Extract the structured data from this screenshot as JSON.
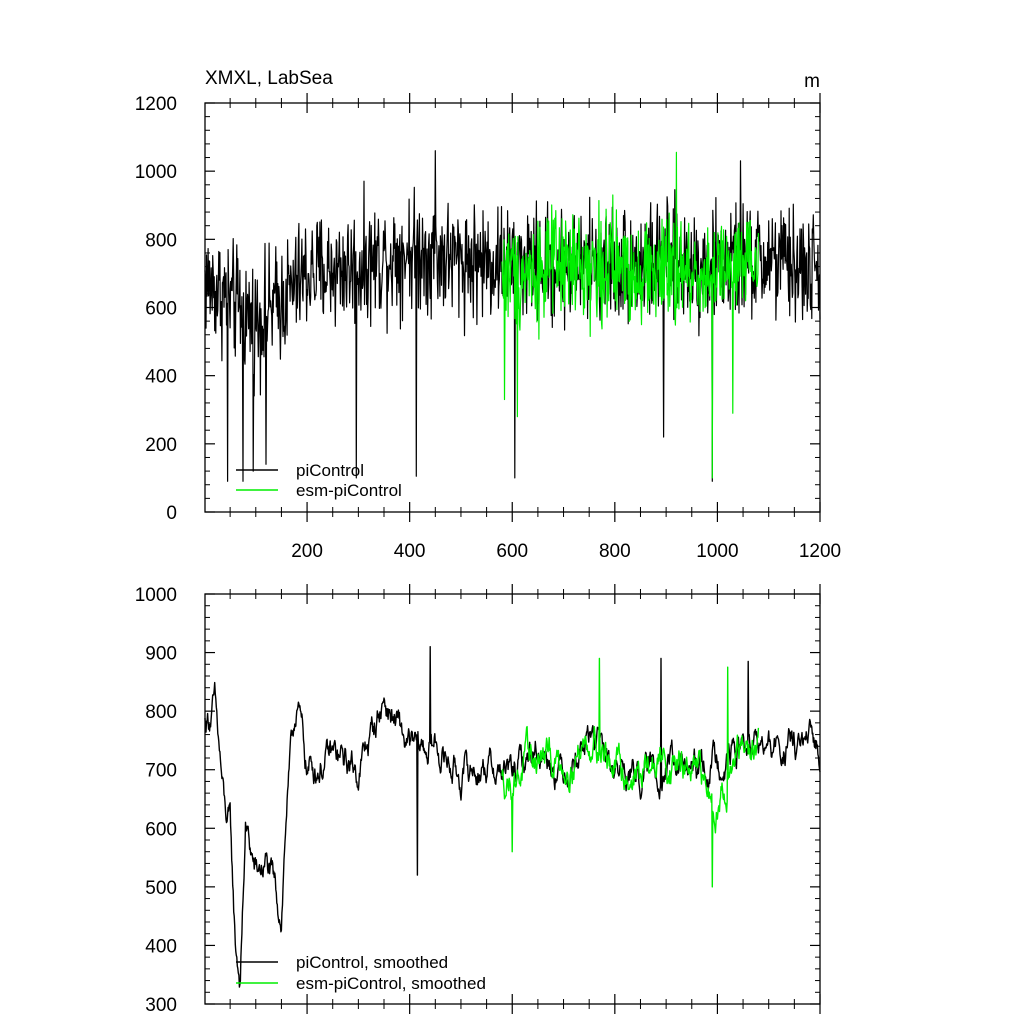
{
  "colors": {
    "piControl": "#000000",
    "esm_piControl": "#00ee00",
    "axes": "#000000",
    "background": "#ffffff"
  },
  "chart_data": [
    {
      "type": "line",
      "title": "XMXL, LabSea",
      "units": "m",
      "xlabel": "",
      "ylabel": "",
      "xlim": [
        1,
        1200
      ],
      "ylim": [
        0,
        1200
      ],
      "x_ticks": [
        200,
        400,
        600,
        800,
        1000,
        1200
      ],
      "x_tick_labels": [
        "200",
        "400",
        "600",
        "800",
        "1000",
        "1200"
      ],
      "y_ticks": [
        0,
        200,
        400,
        600,
        800,
        1000,
        1200
      ],
      "y_tick_labels": [
        "0",
        "200",
        "400",
        "600",
        "800",
        "1000",
        "1200"
      ],
      "grid": false,
      "legend_position": "bottom-left",
      "series": [
        {
          "name": "piControl",
          "color": "#000000",
          "x_range": [
            1,
            1200
          ],
          "n_points": 1200,
          "approx_mean_by_year": [
            [
              1,
              680
            ],
            [
              100,
              560
            ],
            [
              150,
              620
            ],
            [
              200,
              700
            ],
            [
              300,
              720
            ],
            [
              400,
              770
            ],
            [
              500,
              740
            ],
            [
              600,
              730
            ],
            [
              700,
              720
            ],
            [
              800,
              730
            ],
            [
              900,
              730
            ],
            [
              1000,
              720
            ],
            [
              1100,
              740
            ],
            [
              1200,
              700
            ]
          ],
          "approx_amplitude": 180,
          "notable_points": [
            [
              45,
              90
            ],
            [
              75,
              90
            ],
            [
              95,
              120
            ],
            [
              120,
              140
            ],
            [
              296,
              100
            ],
            [
              413,
              105
            ],
            [
              450,
              1060
            ],
            [
              605,
              100
            ],
            [
              895,
              220
            ],
            [
              990,
              90
            ],
            [
              1045,
              1030
            ]
          ]
        },
        {
          "name": "esm-piControl",
          "color": "#00ee00",
          "x_range": [
            580,
            1080
          ],
          "n_points": 501,
          "approx_mean_by_year": [
            [
              580,
              700
            ],
            [
              700,
              720
            ],
            [
              800,
              720
            ],
            [
              900,
              700
            ],
            [
              1000,
              700
            ],
            [
              1080,
              720
            ]
          ],
          "approx_amplitude": 170,
          "notable_points": [
            [
              585,
              330
            ],
            [
              610,
              280
            ],
            [
              920,
              1055
            ],
            [
              990,
              100
            ],
            [
              1030,
              290
            ]
          ]
        }
      ]
    },
    {
      "type": "line",
      "title": "",
      "xlabel": "",
      "ylabel": "",
      "xlim": [
        1,
        1200
      ],
      "ylim": [
        300,
        1000
      ],
      "y_ticks": [
        300,
        400,
        500,
        600,
        700,
        800,
        900,
        1000
      ],
      "y_tick_labels": [
        "300",
        "400",
        "500",
        "600",
        "700",
        "800",
        "900",
        "1000"
      ],
      "x_tick_labels": [],
      "grid": false,
      "legend_position": "bottom-left",
      "series": [
        {
          "name": "piControl, smoothed",
          "color": "#000000",
          "x_range": [
            1,
            1200
          ],
          "n_points": 1200,
          "approx_mean_by_year": [
            [
              1,
              780
            ],
            [
              20,
              810
            ],
            [
              40,
              620
            ],
            [
              50,
              600
            ],
            [
              60,
              400
            ],
            [
              70,
              340
            ],
            [
              80,
              600
            ],
            [
              100,
              520
            ],
            [
              120,
              540
            ],
            [
              150,
              450
            ],
            [
              160,
              640
            ],
            [
              180,
              820
            ],
            [
              200,
              700
            ],
            [
              250,
              720
            ],
            [
              300,
              700
            ],
            [
              350,
              820
            ],
            [
              400,
              730
            ],
            [
              450,
              740
            ],
            [
              500,
              690
            ],
            [
              550,
              710
            ],
            [
              600,
              690
            ],
            [
              650,
              740
            ],
            [
              700,
              700
            ],
            [
              750,
              760
            ],
            [
              800,
              700
            ],
            [
              850,
              690
            ],
            [
              900,
              710
            ],
            [
              950,
              690
            ],
            [
              1000,
              720
            ],
            [
              1050,
              740
            ],
            [
              1100,
              730
            ],
            [
              1150,
              740
            ],
            [
              1200,
              730
            ]
          ],
          "approx_amplitude": 60,
          "notable_points": [
            [
              70,
              340
            ],
            [
              440,
              910
            ],
            [
              415,
              520
            ],
            [
              890,
              890
            ],
            [
              1060,
              885
            ]
          ]
        },
        {
          "name": "esm-piControl, smoothed",
          "color": "#00ee00",
          "x_range": [
            580,
            1080
          ],
          "n_points": 501,
          "approx_mean_by_year": [
            [
              580,
              680
            ],
            [
              650,
              720
            ],
            [
              700,
              710
            ],
            [
              760,
              760
            ],
            [
              800,
              700
            ],
            [
              850,
              690
            ],
            [
              900,
              720
            ],
            [
              950,
              690
            ],
            [
              1000,
              650
            ],
            [
              1040,
              720
            ],
            [
              1080,
              740
            ]
          ],
          "approx_amplitude": 65,
          "notable_points": [
            [
              600,
              560
            ],
            [
              770,
              890
            ],
            [
              990,
              500
            ],
            [
              1020,
              875
            ]
          ]
        }
      ]
    }
  ]
}
